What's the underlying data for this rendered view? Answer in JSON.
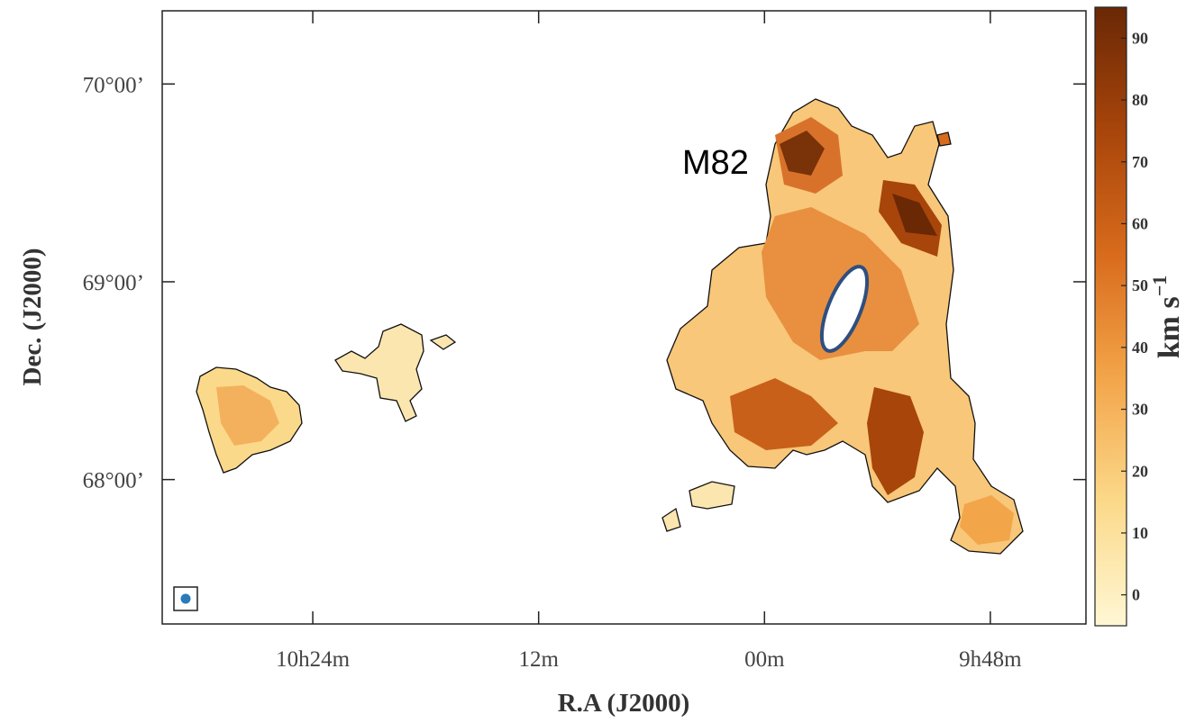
{
  "chart_data": {
    "type": "sky-map",
    "xlabel": "R.A (J2000)",
    "ylabel": "Dec. (J2000)",
    "annotation": "M82",
    "xlim": [
      158.0,
      145.73
    ],
    "xticks": [
      {
        "value": 156,
        "label": "10h24m"
      },
      {
        "value": 153,
        "label": "12m"
      },
      {
        "value": 150,
        "label": "00m"
      },
      {
        "value": 147,
        "label": "9h48m"
      }
    ],
    "ylim": [
      67.27,
      70.37
    ],
    "yticks": [
      {
        "value": 68,
        "label": "68°00’"
      },
      {
        "value": 69,
        "label": "69°00’"
      },
      {
        "value": 70,
        "label": "70°00’"
      }
    ],
    "grid": false,
    "clim": [
      -5,
      95
    ],
    "cticks": [
      0,
      10,
      20,
      30,
      40,
      50,
      60,
      70,
      80,
      90
    ],
    "colorbar_unit": "km s",
    "colorbar_exponent": "−1",
    "colormap": [
      "#fff7d4",
      "#fbd98a",
      "#f3a54a",
      "#d86b1c",
      "#a8450b",
      "#6a2805"
    ]
  }
}
